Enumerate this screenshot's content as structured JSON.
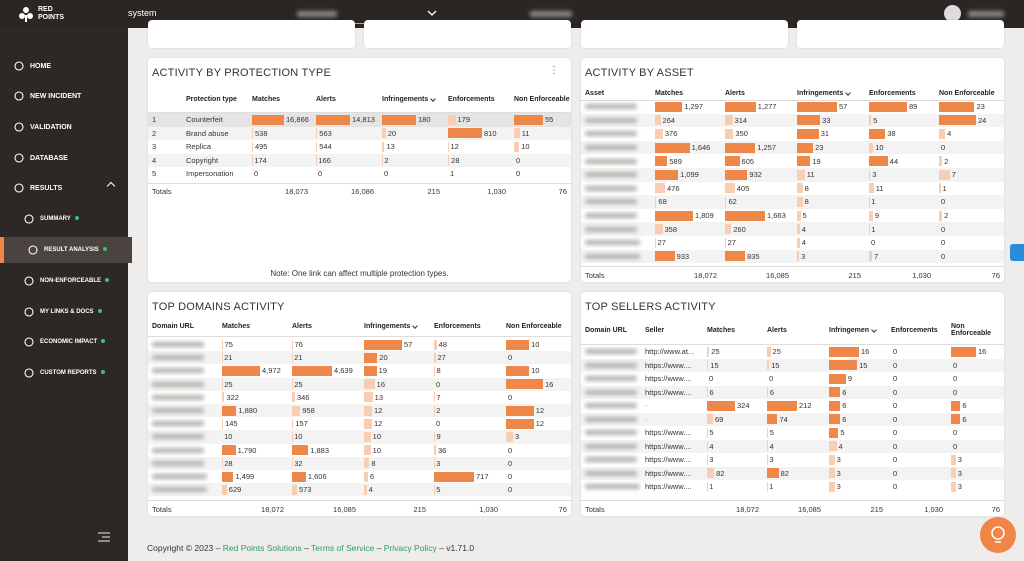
{
  "topbar": {
    "logo_top": "RED",
    "logo_bottom": "POINTS",
    "workspace": "system"
  },
  "sidebar": {
    "items": [
      {
        "label": "HOME"
      },
      {
        "label": "NEW INCIDENT"
      },
      {
        "label": "VALIDATION"
      },
      {
        "label": "DATABASE"
      },
      {
        "label": "RESULTS",
        "expanded": true
      },
      {
        "label": "SUMMARY",
        "sub": true
      },
      {
        "label": "RESULT ANALYSIS",
        "sub": true,
        "active": true
      },
      {
        "label": "NON-ENFORCEABLE",
        "sub": true
      },
      {
        "label": "MY LINKS & DOCS",
        "sub": true
      },
      {
        "label": "ECONOMIC IMPACT",
        "sub": true
      },
      {
        "label": "CUSTOM REPORTS",
        "sub": true
      }
    ]
  },
  "cards": [
    {
      "title": "ACTIVITY BY PROTECTION TYPE",
      "menu": "⋮",
      "columns": [
        null,
        "Protection type",
        "Matches",
        "Alerts",
        "Infringements",
        "Enforcements",
        "Non Enforceable"
      ],
      "sort_column": 4,
      "selected_row": 0,
      "rows": [
        [
          1,
          "Counterfeit",
          {
            "value": 16866,
            "label": "16,866"
          },
          {
            "value": 14813,
            "label": "14,813"
          },
          180,
          179,
          55
        ],
        [
          2,
          "Brand abuse",
          538,
          563,
          20,
          810,
          11
        ],
        [
          3,
          "Replica",
          495,
          544,
          13,
          12,
          10
        ],
        [
          4,
          "Copyright",
          174,
          166,
          2,
          28,
          0
        ],
        [
          5,
          "Impersonation",
          0,
          0,
          0,
          1,
          0
        ]
      ],
      "totals": {
        "label": "Totals",
        "values": [
          {
            "value": 18073,
            "label": "18,073"
          },
          {
            "value": 16086,
            "label": "16,086"
          },
          215,
          {
            "value": 1030,
            "label": "1,030"
          },
          76
        ]
      },
      "note": "Note: One link can affect multiple protection types."
    },
    {
      "title": "ACTIVITY BY ASSET",
      "columns": [
        "Asset",
        "Matches",
        "Alerts",
        "Infringements",
        "Enforcements",
        "Non Enforceable"
      ],
      "sort_column": 3,
      "rows": [
        [
          null,
          {
            "value": 1297,
            "label": "1,297"
          },
          {
            "value": 1277,
            "label": "1,277"
          },
          57,
          89,
          23
        ],
        [
          null,
          264,
          314,
          33,
          5,
          24
        ],
        [
          null,
          376,
          350,
          31,
          38,
          4
        ],
        [
          null,
          {
            "value": 1646,
            "label": "1,646"
          },
          {
            "value": 1257,
            "label": "1,257"
          },
          23,
          10,
          0
        ],
        [
          null,
          589,
          605,
          19,
          44,
          2
        ],
        [
          null,
          {
            "value": 1099,
            "label": "1,099"
          },
          932,
          11,
          3,
          7
        ],
        [
          null,
          476,
          405,
          8,
          11,
          1
        ],
        [
          null,
          68,
          62,
          8,
          1,
          0
        ],
        [
          null,
          {
            "value": 1809,
            "label": "1,809"
          },
          {
            "value": 1663,
            "label": "1,663"
          },
          5,
          9,
          2
        ],
        [
          null,
          358,
          260,
          4,
          1,
          0
        ],
        [
          null,
          27,
          27,
          4,
          0,
          0
        ],
        [
          null,
          933,
          835,
          3,
          7,
          0
        ]
      ],
      "totals": {
        "label": "Totals",
        "values": [
          {
            "value": 18072,
            "label": "18,072"
          },
          {
            "value": 16085,
            "label": "16,085"
          },
          215,
          {
            "value": 1030,
            "label": "1,030"
          },
          76
        ]
      }
    },
    {
      "title": "TOP DOMAINS ACTIVITY",
      "columns": [
        "Domain URL",
        "Matches",
        "Alerts",
        "Infringements",
        "Enforcements",
        "Non Enforceable"
      ],
      "sort_column": 3,
      "rows": [
        [
          null,
          75,
          76,
          57,
          48,
          10
        ],
        [
          null,
          21,
          21,
          20,
          27,
          0
        ],
        [
          null,
          {
            "value": 4972,
            "label": "4,972"
          },
          {
            "value": 4639,
            "label": "4,639"
          },
          19,
          8,
          10
        ],
        [
          null,
          25,
          25,
          16,
          0,
          16
        ],
        [
          null,
          322,
          346,
          13,
          7,
          0
        ],
        [
          null,
          {
            "value": 1880,
            "label": "1,880"
          },
          958,
          12,
          2,
          12
        ],
        [
          null,
          145,
          157,
          12,
          0,
          12
        ],
        [
          null,
          10,
          10,
          10,
          9,
          3
        ],
        [
          null,
          {
            "value": 1790,
            "label": "1,790"
          },
          {
            "value": 1883,
            "label": "1,883"
          },
          10,
          36,
          0
        ],
        [
          null,
          28,
          32,
          8,
          3,
          0
        ],
        [
          null,
          {
            "value": 1499,
            "label": "1,499"
          },
          {
            "value": 1606,
            "label": "1,606"
          },
          6,
          717,
          0
        ],
        [
          null,
          629,
          573,
          4,
          5,
          0
        ]
      ],
      "totals": {
        "label": "Totals",
        "values": [
          {
            "value": 18072,
            "label": "18,072"
          },
          {
            "value": 16085,
            "label": "16,085"
          },
          215,
          {
            "value": 1030,
            "label": "1,030"
          },
          76
        ]
      }
    },
    {
      "title": "TOP SELLERS ACTIVITY",
      "columns": [
        "Domain URL",
        "Seller",
        "Matches",
        "Alerts",
        "Infringemen",
        "Enforcements",
        "Non Enforceable"
      ],
      "sort_column": 4,
      "rows": [
        [
          null,
          "http://www.at...",
          25,
          25,
          16,
          0,
          16
        ],
        [
          null,
          "https://www....",
          15,
          15,
          15,
          0,
          0
        ],
        [
          null,
          "https://www....",
          0,
          0,
          9,
          0,
          0
        ],
        [
          null,
          "https://www....",
          6,
          6,
          6,
          0,
          0
        ],
        [
          null,
          "-",
          324,
          212,
          6,
          0,
          6
        ],
        [
          null,
          "-",
          69,
          74,
          6,
          0,
          6
        ],
        [
          null,
          "https://www....",
          5,
          5,
          5,
          0,
          0
        ],
        [
          null,
          "https://www....",
          4,
          4,
          4,
          0,
          0
        ],
        [
          null,
          "https://www....",
          3,
          3,
          3,
          0,
          3
        ],
        [
          null,
          "https://www....",
          82,
          82,
          3,
          0,
          3
        ],
        [
          null,
          "https://www....",
          1,
          1,
          3,
          0,
          3
        ]
      ],
      "totals": {
        "label": "Totals",
        "values": [
          {
            "value": 18072,
            "label": "18,072"
          },
          {
            "value": 16085,
            "label": "16,085"
          },
          215,
          {
            "value": 1030,
            "label": "1,030"
          },
          76
        ]
      }
    }
  ],
  "footer": {
    "copyright": "Copyright © 2023",
    "separator": "–",
    "company": "Red Points Solutions",
    "terms": "Terms of Service",
    "privacy": "Privacy Policy",
    "version": "v1.71.0"
  }
}
